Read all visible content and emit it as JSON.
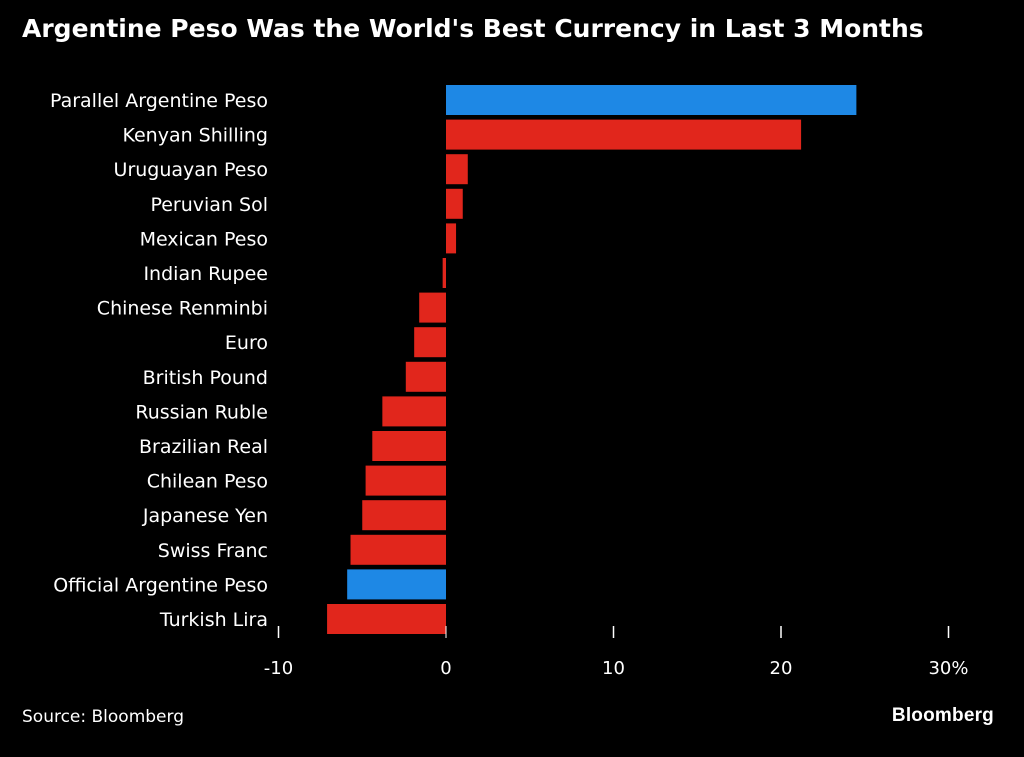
{
  "chart_data": {
    "type": "bar",
    "orientation": "horizontal",
    "title": "Argentine Peso Was the World's Best Currency in Last 3 Months",
    "categories": [
      "Parallel Argentine Peso",
      "Kenyan Shilling",
      "Uruguayan Peso",
      "Peruvian Sol",
      "Mexican Peso",
      "Indian Rupee",
      "Chinese Renminbi",
      "Euro",
      "British Pound",
      "Russian Ruble",
      "Brazilian Real",
      "Chilean Peso",
      "Japanese Yen",
      "Swiss Franc",
      "Official Argentine Peso",
      "Turkish Lira"
    ],
    "values": [
      24.5,
      21.2,
      1.3,
      1.0,
      0.6,
      -0.2,
      -1.6,
      -1.9,
      -2.4,
      -3.8,
      -4.4,
      -4.8,
      -5.0,
      -5.7,
      -5.9,
      -7.1
    ],
    "highlight": [
      "Parallel Argentine Peso",
      "Official Argentine Peso"
    ],
    "colors": {
      "default": "#e1261c",
      "highlight": "#1e88e5"
    },
    "xlim": [
      -10,
      30
    ],
    "xticks": [
      -10,
      0,
      10,
      20,
      30
    ],
    "xtick_labels": [
      "-10",
      "0",
      "10",
      "20",
      "30%"
    ],
    "grid": false
  },
  "footer": {
    "source": "Source: Bloomberg",
    "brand": "Bloomberg"
  }
}
